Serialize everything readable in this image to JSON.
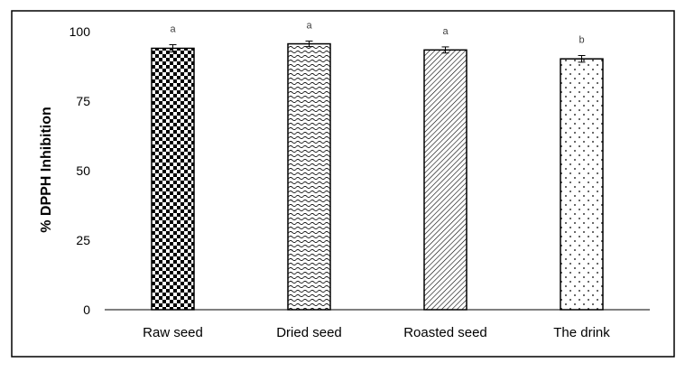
{
  "chart_data": {
    "type": "bar",
    "categories": [
      "Raw seed",
      "Dried seed",
      "Roasted seed",
      "The drink"
    ],
    "values": [
      94,
      95.6,
      93.4,
      90.2
    ],
    "errors": [
      1.3,
      1.0,
      1.1,
      1.2
    ],
    "significance_letters": [
      "a",
      "a",
      "a",
      "b"
    ],
    "bar_patterns": [
      "checker",
      "wave",
      "diagonal",
      "dots"
    ],
    "title": "",
    "xlabel": "",
    "ylabel": "% DPPH Inhibition",
    "ylim": [
      0,
      100
    ],
    "yticks": [
      0,
      25,
      50,
      75,
      100
    ],
    "grid": false,
    "legend": "none"
  }
}
